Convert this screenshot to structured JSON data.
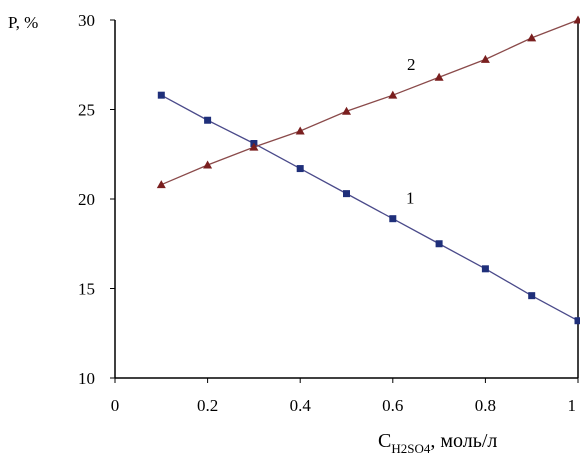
{
  "chart_data": {
    "type": "line",
    "ylabel": "P, %",
    "xlabel": {
      "main": "C",
      "sub": "H",
      "sub2": "2",
      "sub3": "SO",
      "sub4": "4",
      "units": ", моль/л"
    },
    "xlim": [
      0,
      1
    ],
    "ylim": [
      10,
      30
    ],
    "xticks": [
      "0",
      "0.2",
      "0.4",
      "0.6",
      "0.8",
      "1"
    ],
    "yticks": [
      "10",
      "15",
      "20",
      "25",
      "30"
    ],
    "grid": false,
    "series": [
      {
        "label": "1",
        "marker": "square",
        "line_color": "#4a4a8a",
        "marker_color": "#1f2f7a",
        "x": [
          0.1,
          0.2,
          0.3,
          0.4,
          0.5,
          0.6,
          0.7,
          0.8,
          0.9,
          1.0
        ],
        "y": [
          25.8,
          24.4,
          23.1,
          21.7,
          20.3,
          18.9,
          17.5,
          16.1,
          14.6,
          13.2
        ]
      },
      {
        "label": "2",
        "marker": "triangle",
        "line_color": "#8a4a4a",
        "marker_color": "#7a1f1f",
        "x": [
          0.1,
          0.2,
          0.3,
          0.4,
          0.5,
          0.6,
          0.7,
          0.8,
          0.9,
          1.0
        ],
        "y": [
          20.8,
          21.9,
          22.9,
          23.8,
          24.9,
          25.8,
          26.8,
          27.8,
          29.0,
          30.0
        ]
      }
    ]
  }
}
